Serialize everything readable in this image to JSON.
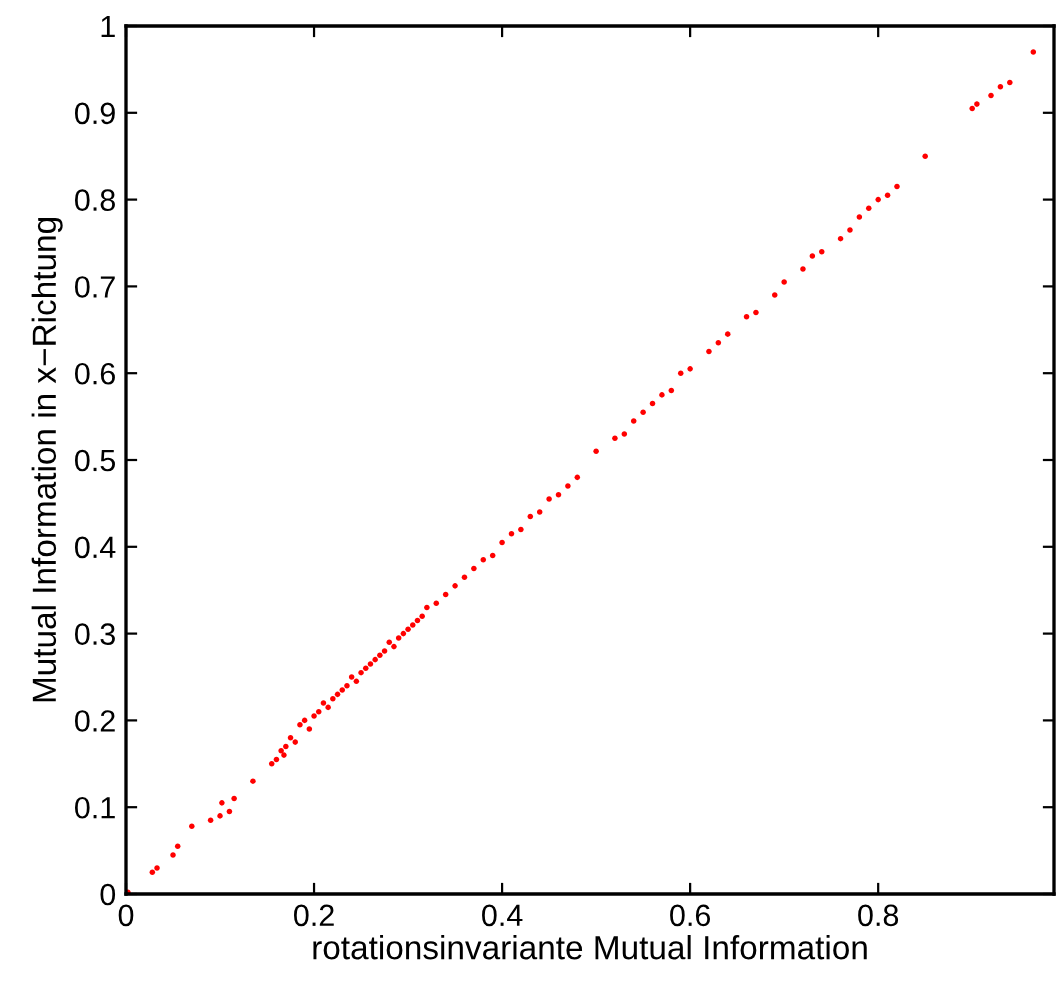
{
  "chart_data": {
    "type": "scatter",
    "xlabel": "rotationsinvariante Mutual Information",
    "ylabel": "Mutual Information in x−Richtung",
    "xlim": [
      0,
      0.987
    ],
    "ylim": [
      0,
      1
    ],
    "xticks": [
      0,
      0.2,
      0.4,
      0.6,
      0.8
    ],
    "yticks": [
      0,
      0.1,
      0.2,
      0.3,
      0.4,
      0.5,
      0.6,
      0.7,
      0.8,
      0.9,
      1
    ],
    "grid": false,
    "marker": "circle",
    "series": [
      {
        "color": "#ff0000",
        "x": [
          0.002,
          0.028,
          0.033,
          0.05,
          0.055,
          0.07,
          0.09,
          0.1,
          0.102,
          0.11,
          0.115,
          0.135,
          0.155,
          0.16,
          0.165,
          0.168,
          0.17,
          0.175,
          0.18,
          0.185,
          0.19,
          0.195,
          0.2,
          0.205,
          0.21,
          0.215,
          0.22,
          0.225,
          0.23,
          0.235,
          0.24,
          0.245,
          0.25,
          0.255,
          0.26,
          0.265,
          0.27,
          0.275,
          0.28,
          0.285,
          0.29,
          0.295,
          0.3,
          0.305,
          0.31,
          0.315,
          0.32,
          0.33,
          0.34,
          0.35,
          0.36,
          0.37,
          0.38,
          0.39,
          0.4,
          0.41,
          0.42,
          0.43,
          0.44,
          0.45,
          0.46,
          0.47,
          0.48,
          0.5,
          0.52,
          0.53,
          0.54,
          0.55,
          0.56,
          0.57,
          0.58,
          0.59,
          0.6,
          0.62,
          0.63,
          0.64,
          0.66,
          0.67,
          0.69,
          0.7,
          0.72,
          0.73,
          0.74,
          0.76,
          0.77,
          0.78,
          0.79,
          0.8,
          0.81,
          0.82,
          0.85,
          0.9,
          0.905,
          0.92,
          0.93,
          0.94,
          0.965
        ],
        "values": [
          0.002,
          0.025,
          0.03,
          0.045,
          0.055,
          0.078,
          0.085,
          0.09,
          0.105,
          0.095,
          0.11,
          0.13,
          0.15,
          0.155,
          0.165,
          0.16,
          0.17,
          0.18,
          0.175,
          0.195,
          0.2,
          0.19,
          0.205,
          0.21,
          0.22,
          0.215,
          0.225,
          0.23,
          0.235,
          0.24,
          0.25,
          0.245,
          0.255,
          0.26,
          0.265,
          0.27,
          0.275,
          0.28,
          0.29,
          0.285,
          0.295,
          0.3,
          0.305,
          0.31,
          0.315,
          0.32,
          0.33,
          0.335,
          0.345,
          0.355,
          0.365,
          0.375,
          0.385,
          0.39,
          0.405,
          0.415,
          0.42,
          0.435,
          0.44,
          0.455,
          0.46,
          0.47,
          0.48,
          0.51,
          0.525,
          0.53,
          0.545,
          0.555,
          0.565,
          0.575,
          0.58,
          0.6,
          0.605,
          0.625,
          0.635,
          0.645,
          0.665,
          0.67,
          0.69,
          0.705,
          0.72,
          0.735,
          0.74,
          0.755,
          0.765,
          0.78,
          0.79,
          0.8,
          0.805,
          0.815,
          0.85,
          0.905,
          0.91,
          0.92,
          0.93,
          0.935,
          0.97
        ]
      }
    ]
  }
}
